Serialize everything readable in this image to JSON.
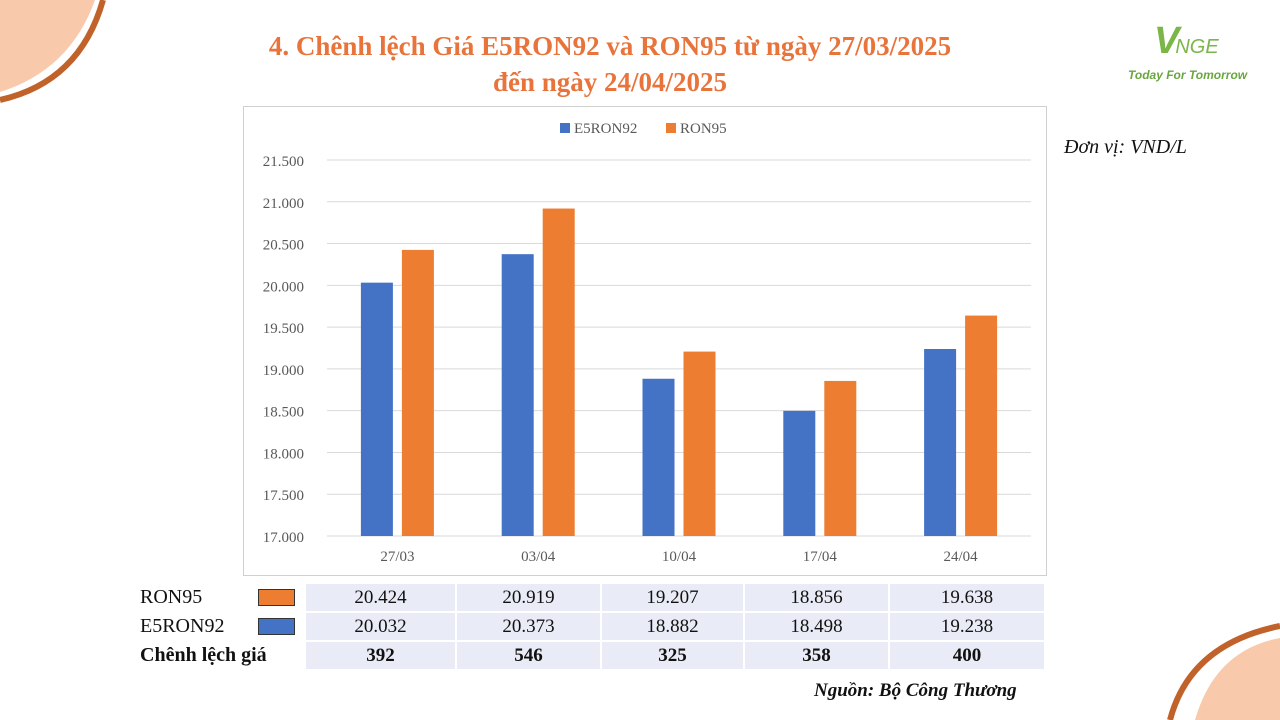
{
  "title_line1": "4. Chênh lệch Giá E5RON92 và RON95 từ ngày 27/03/2025",
  "title_line2": "đến ngày 24/04/2025",
  "logo": {
    "mark_v": "V",
    "mark_nge": "NGE",
    "tagline": "Today For Tomorrow"
  },
  "unit": "Đơn vị: VND/L",
  "source": "Nguồn: Bộ Công Thương",
  "colors": {
    "e5ron92": "#4472c4",
    "ron95": "#ed7d31",
    "accent": "#e8743b",
    "corner": "#c0622a"
  },
  "chart_data": {
    "type": "bar",
    "categories": [
      "27/03",
      "03/04",
      "10/04",
      "17/04",
      "24/04"
    ],
    "series": [
      {
        "name": "E5RON92",
        "values": [
          20032,
          20373,
          18882,
          18498,
          19238
        ]
      },
      {
        "name": "RON95",
        "values": [
          20424,
          20919,
          19207,
          18856,
          19638
        ]
      }
    ],
    "ylim": [
      17000,
      21500
    ],
    "yticks": [
      "17.000",
      "17.500",
      "18.000",
      "18.500",
      "19.000",
      "19.500",
      "20.000",
      "20.500",
      "21.000",
      "21.500"
    ],
    "grid": true,
    "legend": "top-center"
  },
  "table": {
    "rows": [
      {
        "label": "RON95",
        "values": [
          "20.424",
          "20.919",
          "19.207",
          "18.856",
          "19.638"
        ]
      },
      {
        "label": "E5RON92",
        "values": [
          "20.032",
          "20.373",
          "18.882",
          "18.498",
          "19.238"
        ]
      },
      {
        "label": "Chênh lệch giá",
        "values": [
          "392",
          "546",
          "325",
          "358",
          "400"
        ]
      }
    ]
  }
}
